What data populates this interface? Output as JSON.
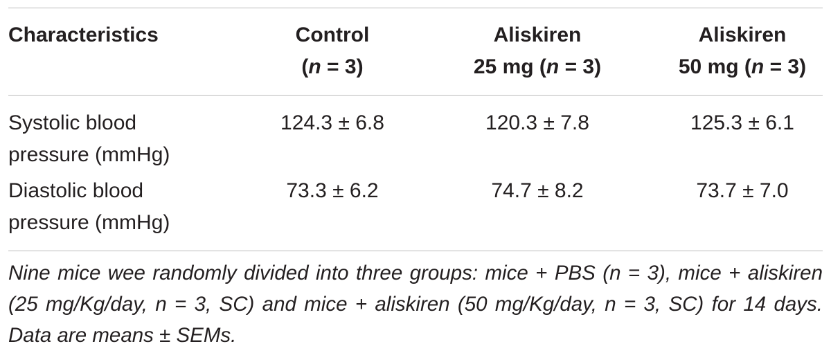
{
  "table": {
    "header": [
      {
        "lines": [
          [
            {
              "text": "Characteristics"
            }
          ]
        ]
      },
      {
        "lines": [
          [
            {
              "text": "Control"
            }
          ],
          [
            {
              "text": "("
            },
            {
              "text": "n",
              "italic": true
            },
            {
              "text": " = 3)"
            }
          ]
        ]
      },
      {
        "lines": [
          [
            {
              "text": "Aliskiren"
            }
          ],
          [
            {
              "text": "25 mg ("
            },
            {
              "text": "n",
              "italic": true
            },
            {
              "text": " = 3)"
            }
          ]
        ]
      },
      {
        "lines": [
          [
            {
              "text": "Aliskiren"
            }
          ],
          [
            {
              "text": "50 mg ("
            },
            {
              "text": "n",
              "italic": true
            },
            {
              "text": " = 3)"
            }
          ]
        ]
      }
    ],
    "rows": [
      [
        "Systolic blood pressure (mmHg)",
        "124.3 ± 6.8",
        "120.3 ± 7.8",
        "125.3 ± 6.1"
      ],
      [
        "Diastolic blood pressure (mmHg)",
        "73.3 ± 6.2",
        "74.7 ± 8.2",
        "73.7 ± 7.0"
      ]
    ],
    "footnote": "Nine mice wee randomly divided into three groups: mice + PBS (n = 3), mice + aliskiren (25 mg/Kg/day, n = 3, SC) and mice + aliskiren (50 mg/Kg/day, n = 3, SC) for 14 days. Data are means ± SEMs."
  }
}
